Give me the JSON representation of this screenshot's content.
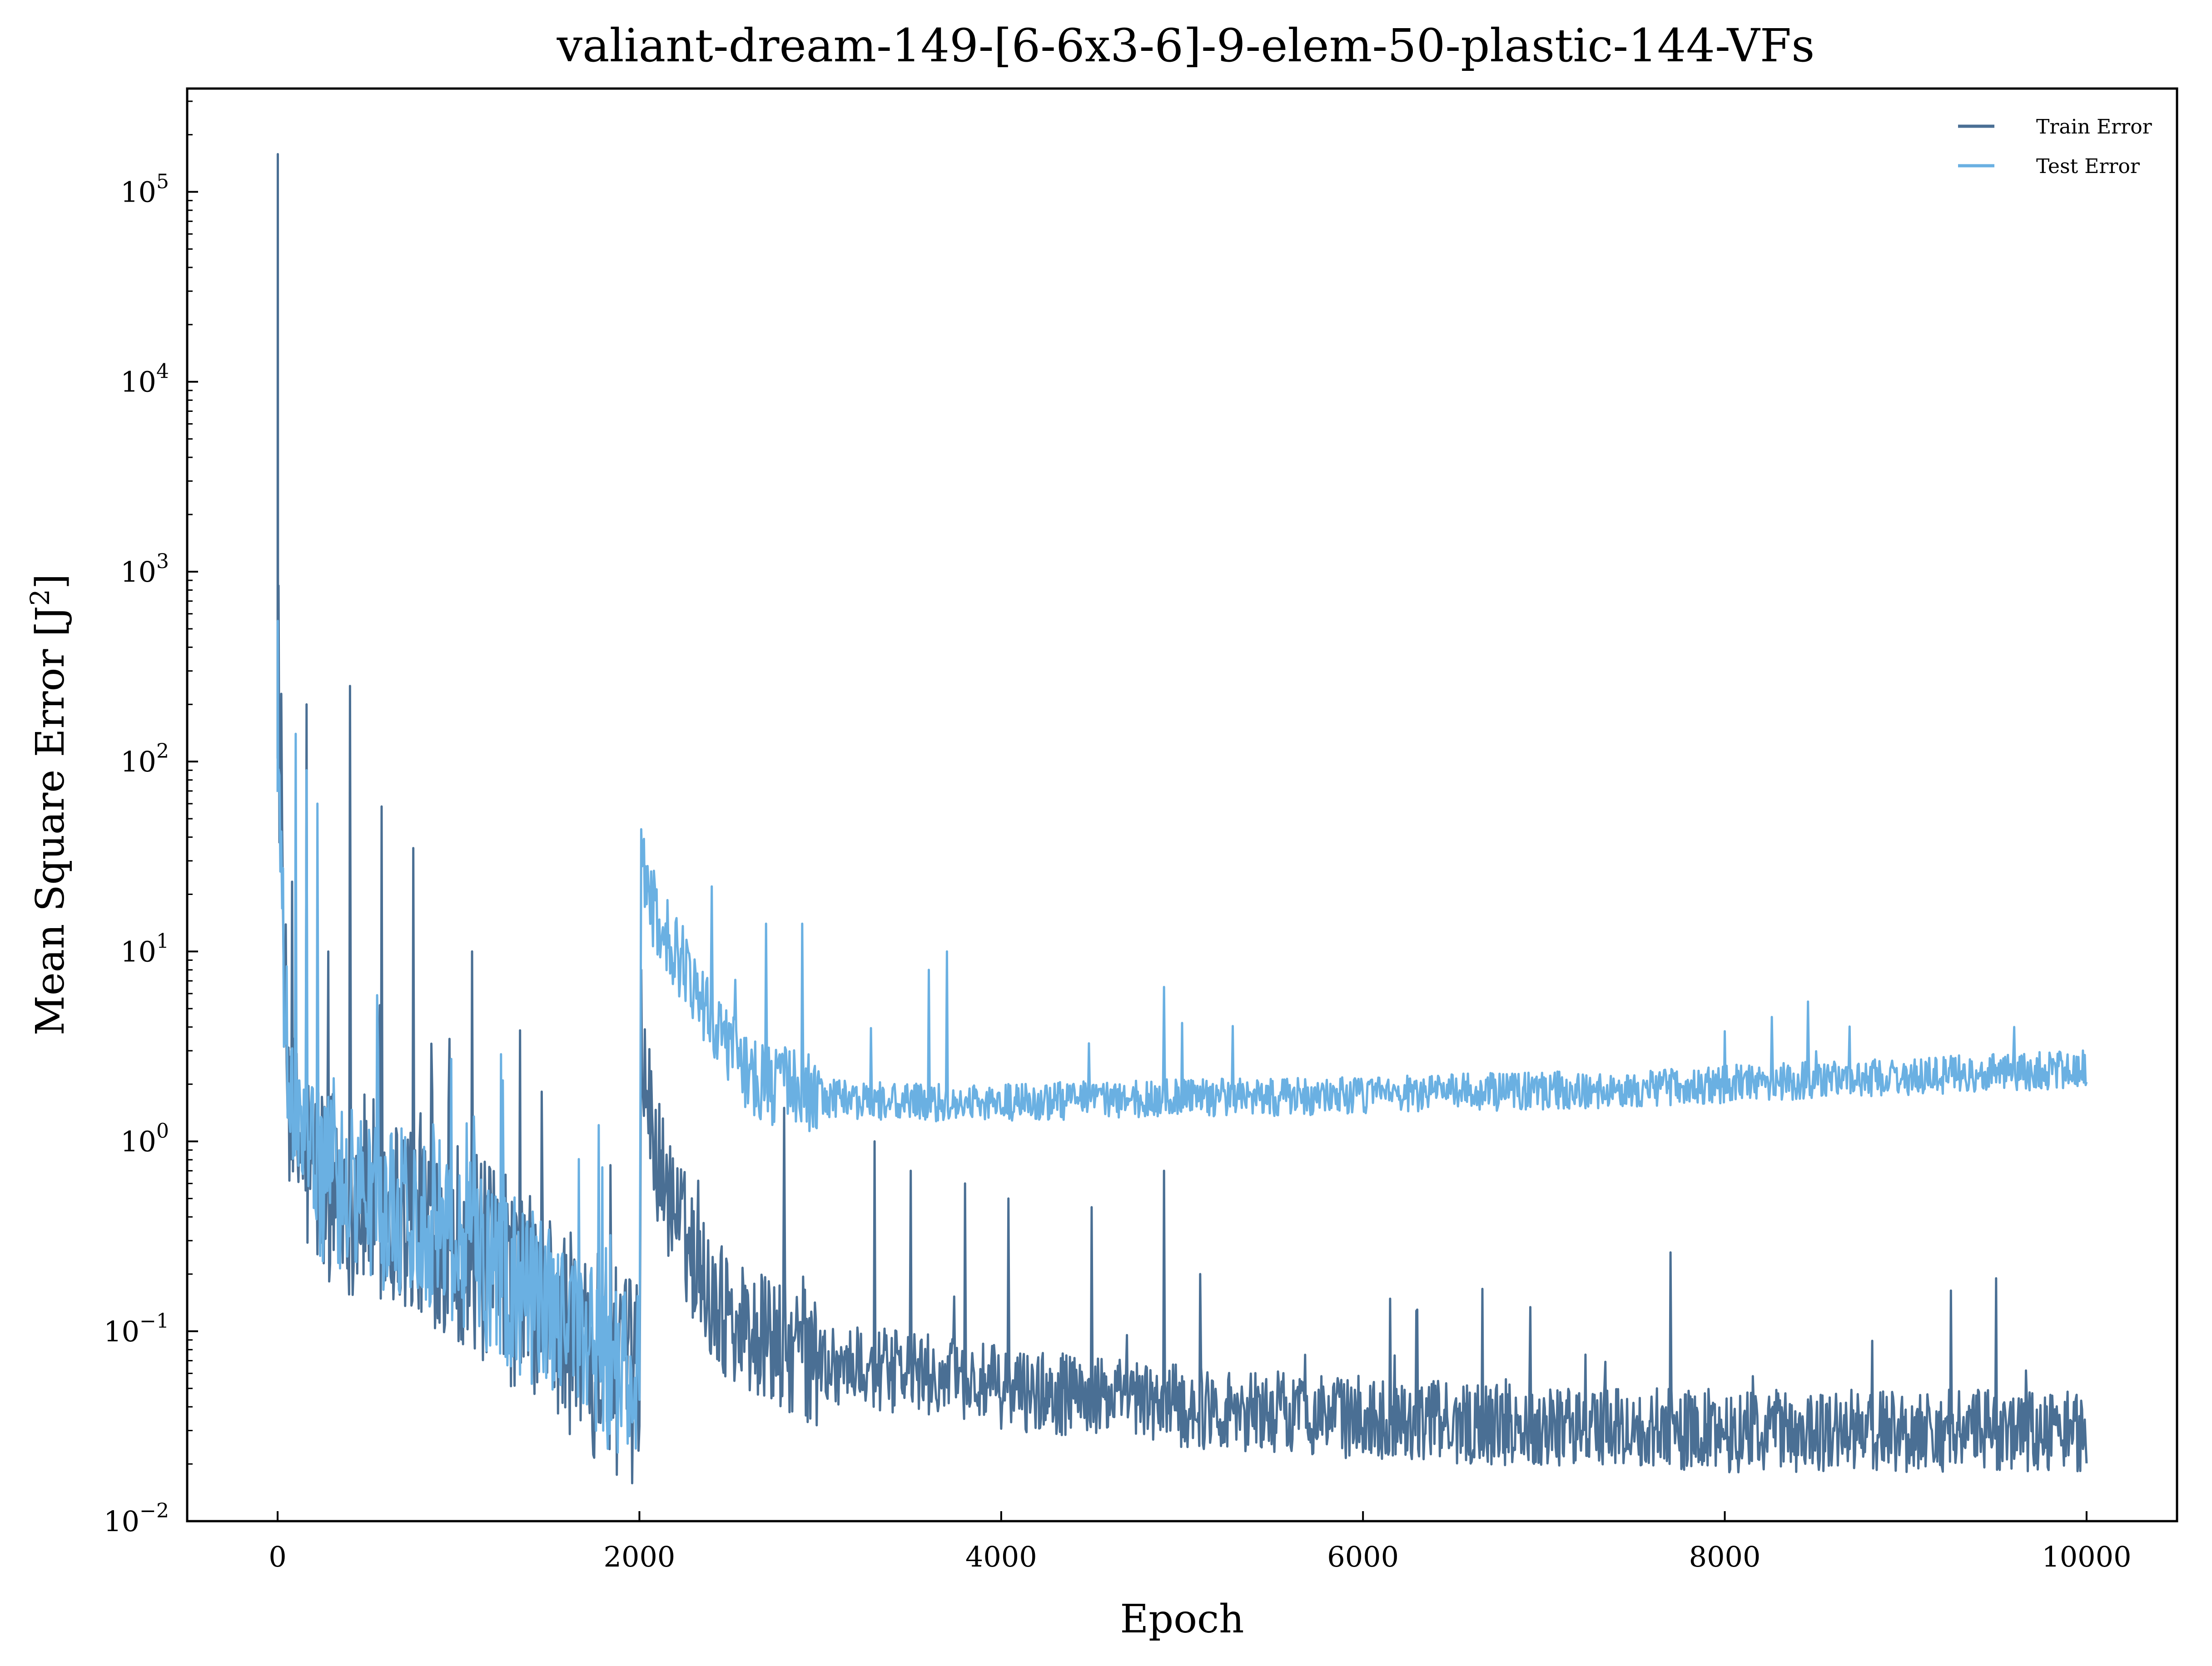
{
  "chart_data": {
    "type": "line",
    "title": "valiant-dream-149-[6-6x3-6]-9-elem-50-plastic-144-VFs",
    "xlabel": "Epoch",
    "ylabel": "Mean Square Error [J",
    "ylabel_sup": "2",
    "ylabel_close": "]",
    "y_scale": "log",
    "xlim": [
      -500,
      10500
    ],
    "ylim": [
      0.01,
      350000
    ],
    "x_ticks": [
      0,
      2000,
      4000,
      6000,
      8000,
      10000
    ],
    "x_tick_labels": [
      "0",
      "2000",
      "4000",
      "6000",
      "8000",
      "10000"
    ],
    "y_ticks": [
      0.01,
      0.1,
      1,
      10,
      100,
      1000,
      10000,
      100000
    ],
    "y_tick_base": "10",
    "y_tick_exponents": [
      "−2",
      "−1",
      "0",
      "1",
      "2",
      "3",
      "4",
      "5"
    ],
    "grid": false,
    "legend_position": "top-right",
    "colors": {
      "train": "#4a6f94",
      "test": "#6ab0e2"
    },
    "series": [
      {
        "name": "Train Error",
        "color": "#4a6f94",
        "x": [
          0,
          1,
          5,
          10,
          20,
          40,
          60,
          80,
          100,
          150,
          200,
          300,
          400,
          500,
          600,
          700,
          800,
          900,
          1000,
          1200,
          1400,
          1600,
          1800,
          1990,
          2000,
          2010,
          2050,
          2100,
          2200,
          2300,
          2400,
          2500,
          2600,
          2800,
          3000,
          3200,
          3500,
          3800,
          4000,
          4500,
          5000,
          5500,
          6000,
          6500,
          7000,
          7500,
          8000,
          8500,
          9000,
          9500,
          10000
        ],
        "y": [
          100,
          158000,
          600,
          100,
          20,
          5,
          2,
          1.2,
          1,
          0.8,
          0.7,
          0.6,
          0.55,
          0.5,
          0.45,
          0.42,
          0.4,
          0.35,
          0.3,
          0.2,
          0.15,
          0.1,
          0.07,
          0.05,
          0.04,
          3,
          1.5,
          0.8,
          0.4,
          0.25,
          0.15,
          0.12,
          0.1,
          0.08,
          0.07,
          0.065,
          0.06,
          0.055,
          0.05,
          0.045,
          0.04,
          0.038,
          0.035,
          0.033,
          0.032,
          0.031,
          0.03,
          0.03,
          0.03,
          0.03,
          0.03
        ],
        "spikes": [
          [
            160,
            200
          ],
          [
            400,
            250
          ],
          [
            575,
            58
          ],
          [
            750,
            35
          ],
          [
            1075,
            10
          ],
          [
            2010,
            8
          ],
          [
            2800,
            1.5
          ],
          [
            3300,
            1
          ],
          [
            3500,
            0.7
          ],
          [
            3800,
            0.6
          ],
          [
            4040,
            0.5
          ],
          [
            4500,
            0.45
          ],
          [
            4900,
            0.7
          ],
          [
            5100,
            0.2
          ],
          [
            6300,
            0.13
          ],
          [
            7700,
            0.26
          ],
          [
            9500,
            0.19
          ]
        ]
      },
      {
        "name": "Test Error",
        "color": "#6ab0e2",
        "x": [
          0,
          1,
          5,
          10,
          20,
          40,
          60,
          80,
          100,
          150,
          200,
          300,
          400,
          500,
          600,
          700,
          800,
          900,
          1000,
          1200,
          1400,
          1600,
          1800,
          1990,
          2000,
          2010,
          2050,
          2100,
          2200,
          2300,
          2400,
          2500,
          2600,
          2800,
          3000,
          3200,
          3500,
          3800,
          4000,
          4500,
          5000,
          5500,
          6000,
          6500,
          7000,
          7500,
          8000,
          8500,
          9000,
          9500,
          10000
        ],
        "y": [
          100,
          550,
          80,
          50,
          20,
          5,
          2,
          1.2,
          1,
          0.8,
          0.7,
          0.6,
          0.55,
          0.5,
          0.45,
          0.42,
          0.4,
          0.35,
          0.3,
          0.2,
          0.15,
          0.1,
          0.07,
          0.055,
          0.05,
          40,
          20,
          14,
          10,
          7,
          4.5,
          3,
          2.3,
          1.9,
          1.7,
          1.65,
          1.6,
          1.6,
          1.6,
          1.65,
          1.7,
          1.7,
          1.75,
          1.8,
          1.85,
          1.9,
          2,
          2.1,
          2.2,
          2.3,
          2.4
        ],
        "spikes": [
          [
            100,
            140
          ],
          [
            160,
            90
          ],
          [
            220,
            60
          ],
          [
            2010,
            44
          ],
          [
            2400,
            22
          ],
          [
            2700,
            14
          ],
          [
            2900,
            14
          ],
          [
            3600,
            8
          ],
          [
            3700,
            10
          ],
          [
            4900,
            6.5
          ],
          [
            5000,
            4.2
          ],
          [
            8000,
            3.8
          ],
          [
            9600,
            4
          ]
        ]
      }
    ]
  }
}
